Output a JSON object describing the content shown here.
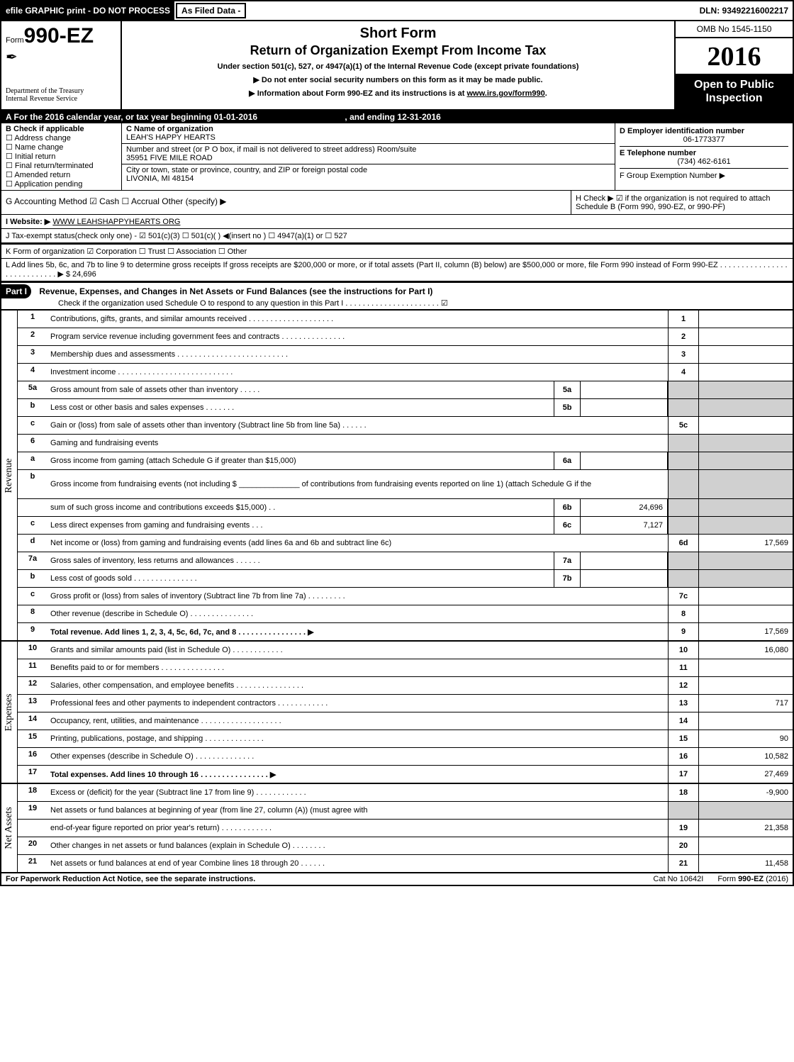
{
  "topbar": {
    "efile": "efile GRAPHIC print - DO NOT PROCESS",
    "asFiled": "As Filed Data -",
    "dln": "DLN: 93492216002217"
  },
  "header": {
    "formPrefix": "Form",
    "formNumber": "990-EZ",
    "title1": "Short Form",
    "title2": "Return of Organization Exempt From Income Tax",
    "subtitle": "Under section 501(c), 527, or 4947(a)(1) of the Internal Revenue Code (except private foundations)",
    "note1": "▶ Do not enter social security numbers on this form as it may be made public.",
    "note2": "▶ Information about Form 990-EZ and its instructions is at www.irs.gov/form990.",
    "omb": "OMB No 1545-1150",
    "year": "2016",
    "open": "Open to Public Inspection",
    "dept1": "Department of the Treasury",
    "dept2": "Internal Revenue Service"
  },
  "sectionA": {
    "text": "A  For the 2016 calendar year, or tax year beginning 01-01-2016",
    "ending": ", and ending 12-31-2016"
  },
  "sectionB": {
    "title": "B  Check if applicable",
    "items": [
      "Address change",
      "Name change",
      "Initial return",
      "Final return/terminated",
      "Amended return",
      "Application pending"
    ]
  },
  "sectionC": {
    "labelName": "C Name of organization",
    "orgName": "LEAH'S HAPPY HEARTS",
    "labelAddr": "Number and street (or P O box, if mail is not delivered to street address)  Room/suite",
    "addr": "35951 FIVE MILE ROAD",
    "labelCity": "City or town, state or province, country, and ZIP or foreign postal code",
    "city": "LIVONIA, MI  48154"
  },
  "sectionD": {
    "label": "D Employer identification number",
    "value": "06-1773377"
  },
  "sectionE": {
    "label": "E Telephone number",
    "value": "(734) 462-6161"
  },
  "sectionF": {
    "label": "F Group Exemption Number  ▶"
  },
  "lineG": "G Accounting Method     ☑ Cash   ☐ Accrual   Other (specify) ▶",
  "lineH": "H   Check ▶  ☑  if the organization is not required to attach Schedule B (Form 990, 990-EZ, or 990-PF)",
  "lineI": {
    "label": "I Website: ▶",
    "value": "WWW LEAHSHAPPYHEARTS ORG"
  },
  "lineJ": "J Tax-exempt status(check only one) - ☑ 501(c)(3)  ☐ 501(c)( ) ◀(insert no ) ☐ 4947(a)(1) or ☐ 527",
  "lineK": "K Form of organization    ☑ Corporation  ☐ Trust  ☐ Association  ☐ Other",
  "lineL": {
    "text": "L Add lines 5b, 6c, and 7b to line 9 to determine gross receipts If gross receipts are $200,000 or more, or if total assets (Part II, column (B) below) are $500,000 or more, file Form 990 instead of Form 990-EZ . . . . . . . . . . . . . . . . . . . . . . . . . . . . ▶ $ 24,696"
  },
  "part1": {
    "label": "Part I",
    "title": "Revenue, Expenses, and Changes in Net Assets or Fund Balances (see the instructions for Part I)",
    "check": "Check if the organization used Schedule O to respond to any question in this Part I . . . . . . . . . . . . . . . . . . . . . . ☑"
  },
  "sideLabels": {
    "revenue": "Revenue",
    "expenses": "Expenses",
    "netassets": "Net Assets"
  },
  "lines": [
    {
      "n": "1",
      "desc": "Contributions, gifts, grants, and similar amounts received . . . . . . . . . . . . . . . . . . . .",
      "rn": "1",
      "rv": ""
    },
    {
      "n": "2",
      "desc": "Program service revenue including government fees and contracts . . . . . . . . . . . . . . .",
      "rn": "2",
      "rv": ""
    },
    {
      "n": "3",
      "desc": "Membership dues and assessments . . . . . . . . . . . . . . . . . . . . . . . . . .",
      "rn": "3",
      "rv": ""
    },
    {
      "n": "4",
      "desc": "Investment income . . . . . . . . . . . . . . . . . . . . . . . . . . .",
      "rn": "4",
      "rv": ""
    },
    {
      "n": "5a",
      "desc": "Gross amount from sale of assets other than inventory . . . . .",
      "mn": "5a",
      "mv": "",
      "shadeR": true
    },
    {
      "n": "b",
      "desc": "Less cost or other basis and sales expenses . . . . . . .",
      "mn": "5b",
      "mv": "",
      "shadeR": true
    },
    {
      "n": "c",
      "desc": "Gain or (loss) from sale of assets other than inventory (Subtract line 5b from line 5a) . . . . . .",
      "rn": "5c",
      "rv": ""
    },
    {
      "n": "6",
      "desc": "Gaming and fundraising events",
      "shadeR": true
    },
    {
      "n": "a",
      "desc": "Gross income from gaming (attach Schedule G if greater than $15,000)",
      "mn": "6a",
      "mv": "",
      "shadeR": true
    },
    {
      "n": "b",
      "desc": "Gross income from fundraising events (not including $ ______________ of contributions from fundraising events reported on line 1) (attach Schedule G if the",
      "shadeR": true,
      "tall": true
    },
    {
      "n": "",
      "desc": "sum of such gross income and contributions exceeds $15,000)   . .",
      "mn": "6b",
      "mv": "24,696",
      "shadeR": true
    },
    {
      "n": "c",
      "desc": "Less direct expenses from gaming and fundraising events      . . .",
      "mn": "6c",
      "mv": "7,127",
      "shadeR": true
    },
    {
      "n": "d",
      "desc": "Net income or (loss) from gaming and fundraising events (add lines 6a and 6b and subtract line 6c)",
      "rn": "6d",
      "rv": "17,569"
    },
    {
      "n": "7a",
      "desc": "Gross sales of inventory, less returns and allowances . . . . . .",
      "mn": "7a",
      "mv": "",
      "shadeR": true
    },
    {
      "n": "b",
      "desc": "Less cost of goods sold         . . . . . . . . . . . . . . .",
      "mn": "7b",
      "mv": "",
      "shadeR": true
    },
    {
      "n": "c",
      "desc": "Gross profit or (loss) from sales of inventory (Subtract line 7b from line 7a) . . . . . . . . .",
      "rn": "7c",
      "rv": ""
    },
    {
      "n": "8",
      "desc": "Other revenue (describe in Schedule O)                  . . . . . . . . . . . . . . .",
      "rn": "8",
      "rv": ""
    },
    {
      "n": "9",
      "desc": "Total revenue. Add lines 1, 2, 3, 4, 5c, 6d, 7c, and 8 . . . . . . . . . . . . . . . .  ▶",
      "rn": "9",
      "rv": "17,569",
      "bold": true
    }
  ],
  "expLines": [
    {
      "n": "10",
      "desc": "Grants and similar amounts paid (list in Schedule O)        . . . . . . . . . . . .",
      "rn": "10",
      "rv": "16,080"
    },
    {
      "n": "11",
      "desc": "Benefits paid to or for members                  . . . . . . . . . . . . . . .",
      "rn": "11",
      "rv": ""
    },
    {
      "n": "12",
      "desc": "Salaries, other compensation, and employee benefits . . . . . . . . . . . . . . . .",
      "rn": "12",
      "rv": ""
    },
    {
      "n": "13",
      "desc": "Professional fees and other payments to independent contractors . . . . . . . . . . . .",
      "rn": "13",
      "rv": "717"
    },
    {
      "n": "14",
      "desc": "Occupancy, rent, utilities, and maintenance . . . . . . . . . . . . . . . . . . .",
      "rn": "14",
      "rv": ""
    },
    {
      "n": "15",
      "desc": "Printing, publications, postage, and shipping          . . . . . . . . . . . . . .",
      "rn": "15",
      "rv": "90"
    },
    {
      "n": "16",
      "desc": "Other expenses (describe in Schedule O)            . . . . . . . . . . . . . .",
      "rn": "16",
      "rv": "10,582"
    },
    {
      "n": "17",
      "desc": "Total expenses. Add lines 10 through 16        . . . . . . . . . . . . . . . .  ▶",
      "rn": "17",
      "rv": "27,469",
      "bold": true
    }
  ],
  "netLines": [
    {
      "n": "18",
      "desc": "Excess or (deficit) for the year (Subtract line 17 from line 9)      . . . . . . . . . . . .",
      "rn": "18",
      "rv": "-9,900"
    },
    {
      "n": "19",
      "desc": "Net assets or fund balances at beginning of year (from line 27, column (A)) (must agree with",
      "shadeR": true
    },
    {
      "n": "",
      "desc": "end-of-year figure reported on prior year's return)          . . . . . . . . . . . .",
      "rn": "19",
      "rv": "21,358"
    },
    {
      "n": "20",
      "desc": "Other changes in net assets or fund balances (explain in Schedule O)    . . . . . . . .",
      "rn": "20",
      "rv": ""
    },
    {
      "n": "21",
      "desc": "Net assets or fund balances at end of year Combine lines 18 through 20      . . . . . .",
      "rn": "21",
      "rv": "11,458"
    }
  ],
  "footer": {
    "left": "For Paperwork Reduction Act Notice, see the separate instructions.",
    "mid": "Cat No 10642I",
    "right": "Form 990-EZ (2016)"
  }
}
